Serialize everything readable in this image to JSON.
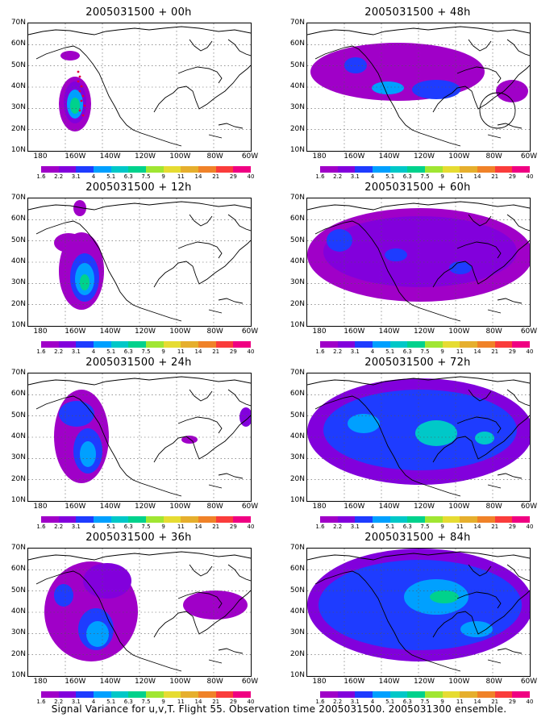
{
  "panels": [
    {
      "title": "2005031500 + 00h",
      "key": "p00"
    },
    {
      "title": "2005031500 + 48h",
      "key": "p48"
    },
    {
      "title": "2005031500 + 12h",
      "key": "p12"
    },
    {
      "title": "2005031500 + 60h",
      "key": "p60"
    },
    {
      "title": "2005031500 + 24h",
      "key": "p24"
    },
    {
      "title": "2005031500 + 72h",
      "key": "p72"
    },
    {
      "title": "2005031500 + 36h",
      "key": "p36"
    },
    {
      "title": "2005031500 + 84h",
      "key": "p84"
    }
  ],
  "lat_labels": [
    "70N",
    "60N",
    "50N",
    "40N",
    "30N",
    "20N",
    "10N"
  ],
  "lon_labels": [
    "180",
    "160W",
    "140W",
    "120W",
    "100W",
    "80W",
    "60W"
  ],
  "colorbar": {
    "labels": [
      "1.6",
      "2.2",
      "3.1",
      "4",
      "5.1",
      "6.3",
      "7.5",
      "9",
      "11",
      "14",
      "21",
      "29",
      "40"
    ],
    "colors": [
      "#a000c8",
      "#8200dc",
      "#1e3cff",
      "#00a0ff",
      "#00c8c8",
      "#00d28c",
      "#a0e632",
      "#e6dc32",
      "#e6af2d",
      "#f08228",
      "#fa3c3c",
      "#f00082"
    ]
  },
  "footer": "Signal Variance for u,v,T. Flight 55. Observation time 2005031500. 2005031300 ensemble."
}
